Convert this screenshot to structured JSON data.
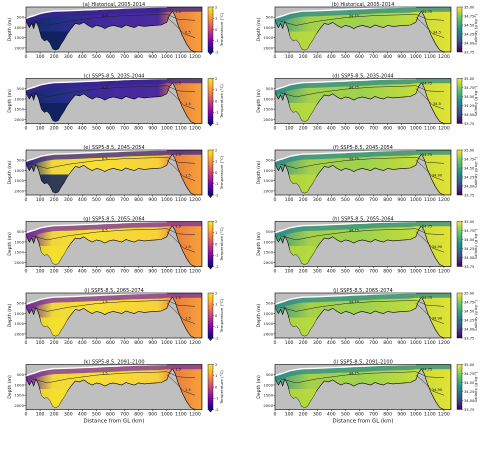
{
  "figure": {
    "xlabel": "Distance from GL (km)",
    "ylabel": "Depth (m)",
    "x_ticks": [
      0,
      100,
      200,
      300,
      400,
      500,
      600,
      700,
      800,
      900,
      1000,
      1100,
      1200
    ],
    "y_ticks": [
      500,
      1000,
      1500,
      2000
    ],
    "temperature_colorbar": {
      "label": "Temperature (°C)",
      "ticks": [
        2,
        1,
        0,
        -1,
        -2
      ],
      "colors": [
        "#fde725",
        "#f89540",
        "#cc4778",
        "#7e03a8",
        "#0d0887"
      ],
      "low_color": "#0b2545"
    },
    "salinity_colorbar": {
      "label": "Salinity (g kg⁻¹)",
      "ticks": [
        "35.00",
        "34.75",
        "34.50",
        "34.25",
        "34.00",
        "33.75"
      ],
      "colors": [
        "#fde725",
        "#5ec962",
        "#21918c",
        "#3b528b",
        "#440154"
      ]
    },
    "background_color": "#bfbfbf"
  },
  "chart_data": [
    {
      "type": "section",
      "variable": "temperature",
      "title": "(a) Historical, 2005-2014",
      "contour_labels": [
        "0.5",
        "1.5",
        "0.5"
      ]
    },
    {
      "type": "section",
      "variable": "salinity",
      "title": "(b) Historical, 2005-2014",
      "contour_labels": [
        "34.75",
        "34.75",
        "34.5"
      ]
    },
    {
      "type": "section",
      "variable": "temperature",
      "title": "(c) SSP5-8.5, 2035-2044",
      "contour_labels": [
        "0.5",
        "0.5",
        "1.5"
      ]
    },
    {
      "type": "section",
      "variable": "salinity",
      "title": "(d) SSP5-8.5, 2035-2044",
      "contour_labels": [
        "34.75",
        "34.75",
        "34.5"
      ]
    },
    {
      "type": "section",
      "variable": "temperature",
      "title": "(e) SSP5-8.5, 2045-2054",
      "contour_labels": [
        "0.5",
        "1.5",
        "1.5"
      ]
    },
    {
      "type": "section",
      "variable": "salinity",
      "title": "(f) SSP5-8.5, 2045-2054",
      "contour_labels": [
        "34.75",
        "34.75",
        "34.90"
      ]
    },
    {
      "type": "section",
      "variable": "temperature",
      "title": "(g) SSP5-8.5, 2055-2064",
      "contour_labels": [
        "0.5",
        "1.5",
        "1.5"
      ]
    },
    {
      "type": "section",
      "variable": "salinity",
      "title": "(h) SSP5-8.5, 2055-2064",
      "contour_labels": [
        "34.75",
        "34.75",
        "34.90"
      ]
    },
    {
      "type": "section",
      "variable": "temperature",
      "title": "(i) SSP5-8.5, 2065-2074",
      "contour_labels": [
        "1.5",
        "1.5",
        "1.5"
      ]
    },
    {
      "type": "section",
      "variable": "salinity",
      "title": "(j) SSP5-8.5, 2065-2074",
      "contour_labels": [
        "34.75",
        "34.75",
        "34.90"
      ]
    },
    {
      "type": "section",
      "variable": "temperature",
      "title": "(k) SSP5-8.5, 2091-2100",
      "contour_labels": [
        "1.5",
        "1.5",
        "1.5"
      ]
    },
    {
      "type": "section",
      "variable": "salinity",
      "title": "(l) SSP5-8.5, 2091-2100",
      "contour_labels": [
        "34.75",
        "34.75",
        "34.90"
      ]
    }
  ]
}
